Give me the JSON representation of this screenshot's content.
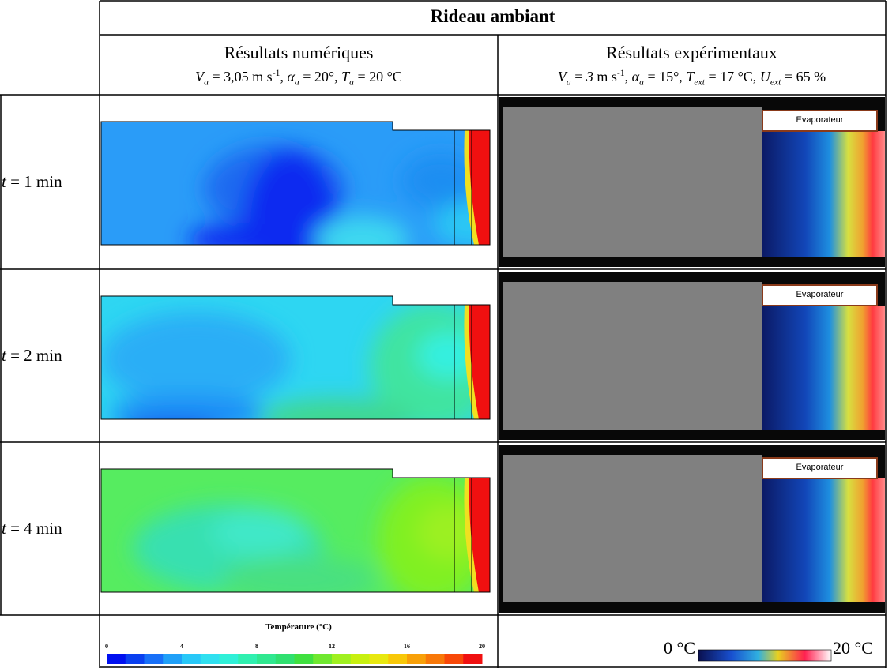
{
  "header": {
    "title": "Rideau ambiant"
  },
  "columns": [
    {
      "title": "Résultats numériques",
      "params": [
        "V",
        "a",
        " = 3,05 m s",
        "-1",
        ", ",
        "α",
        "a",
        " = 20°, ",
        "T",
        "a",
        " = 20 °C"
      ]
    },
    {
      "title": "Résultats expérimentaux",
      "params": [
        "V",
        "a",
        " = ",
        "3",
        " m s",
        "-1",
        ", ",
        "α",
        "a",
        " = 15°, ",
        "T",
        "ext",
        " = 17 °C, ",
        "U",
        "ext",
        " = 65 %"
      ]
    }
  ],
  "rows": [
    {
      "label": [
        "t",
        " = 1 min"
      ],
      "evaporator": "Evaporateur"
    },
    {
      "label": [
        "t",
        " = 2 min"
      ],
      "evaporator": "Evaporateur"
    },
    {
      "label": [
        "t",
        " = 4 min"
      ],
      "evaporator": "Evaporateur"
    }
  ],
  "legend": {
    "numeric": {
      "title": "Température (°C)",
      "ticks": [
        0,
        4,
        8,
        12,
        16,
        20
      ]
    },
    "experimental": {
      "min": "0 °C",
      "max": "20 °C"
    }
  }
}
